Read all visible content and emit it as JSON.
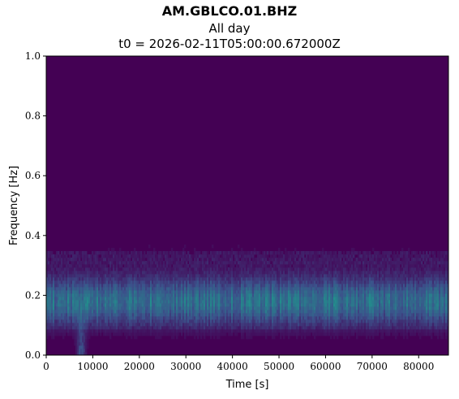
{
  "chart_data": {
    "type": "heatmap",
    "title": "AM.GBLCO.01.BHZ",
    "subtitle": "All day",
    "subtitle2": "t0 = 2026-02-11T05:00:00.672000Z",
    "xlabel": "Time [s]",
    "ylabel": "Frequency [Hz]",
    "xlim": [
      0,
      86400
    ],
    "ylim": [
      0.0,
      1.0
    ],
    "x_ticks": [
      0,
      10000,
      20000,
      30000,
      40000,
      50000,
      60000,
      70000,
      80000
    ],
    "y_ticks": [
      0.0,
      0.2,
      0.4,
      0.6,
      0.8,
      1.0
    ],
    "x_tick_labels": [
      "0",
      "10000",
      "20000",
      "30000",
      "40000",
      "50000",
      "60000",
      "70000",
      "80000"
    ],
    "y_tick_labels": [
      "0.0",
      "0.2",
      "0.4",
      "0.6",
      "0.8",
      "1.0"
    ],
    "colormap": "viridis",
    "background_color": "#440154",
    "energy_band_hz": [
      0.1,
      0.3
    ],
    "peak_frequency_hz": 0.18,
    "transient_event": {
      "time_s": 7500,
      "freq_range_hz": [
        0.0,
        0.2
      ]
    }
  }
}
